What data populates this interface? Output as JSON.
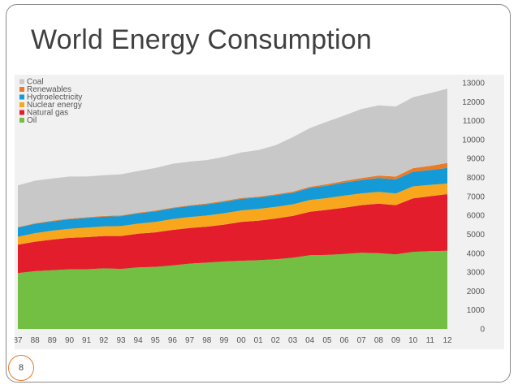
{
  "slide": {
    "title": "World Energy Consumption",
    "page_number": "8"
  },
  "colors": {
    "Coal": "#c8c8c8",
    "Renewables": "#ec7a25",
    "Hydroelectricity": "#139ad7",
    "Nuclear energy": "#f8a71c",
    "Natural gas": "#e41d2c",
    "Oil": "#72bf44"
  },
  "chart_data": {
    "type": "area",
    "stacked": true,
    "title": "World Energy Consumption",
    "xlabel": "",
    "ylabel": "",
    "x": [
      "87",
      "88",
      "89",
      "90",
      "91",
      "92",
      "93",
      "94",
      "95",
      "96",
      "97",
      "98",
      "99",
      "00",
      "01",
      "02",
      "03",
      "04",
      "05",
      "06",
      "07",
      "08",
      "09",
      "10",
      "11",
      "12"
    ],
    "ylim": [
      0,
      13000
    ],
    "yticks": [
      0,
      1000,
      2000,
      3000,
      4000,
      5000,
      6000,
      7000,
      8000,
      9000,
      10000,
      11000,
      12000,
      13000
    ],
    "y_axis_side": "right",
    "legend_position": "top-left",
    "legend_order": [
      "Coal",
      "Renewables",
      "Hydroelectricity",
      "Nuclear energy",
      "Natural gas",
      "Oil"
    ],
    "series": [
      {
        "name": "Oil",
        "values": [
          2950,
          3050,
          3100,
          3150,
          3150,
          3200,
          3170,
          3250,
          3280,
          3350,
          3450,
          3500,
          3560,
          3600,
          3630,
          3680,
          3760,
          3890,
          3910,
          3960,
          4020,
          4000,
          3940,
          4070,
          4110,
          4130
        ]
      },
      {
        "name": "Natural gas",
        "values": [
          1500,
          1560,
          1620,
          1660,
          1700,
          1710,
          1740,
          1780,
          1820,
          1880,
          1880,
          1900,
          1950,
          2050,
          2090,
          2150,
          2210,
          2300,
          2380,
          2440,
          2520,
          2620,
          2600,
          2830,
          2900,
          2990
        ]
      },
      {
        "name": "Nuclear energy",
        "values": [
          420,
          450,
          470,
          480,
          500,
          510,
          520,
          530,
          550,
          570,
          580,
          590,
          600,
          610,
          620,
          620,
          610,
          620,
          620,
          640,
          620,
          620,
          610,
          630,
          600,
          560
        ]
      },
      {
        "name": "Hydroelectricity",
        "values": [
          480,
          490,
          490,
          500,
          510,
          510,
          530,
          540,
          560,
          570,
          580,
          590,
          600,
          610,
          600,
          610,
          610,
          640,
          660,
          690,
          700,
          730,
          750,
          770,
          780,
          830
        ]
      },
      {
        "name": "Renewables",
        "values": [
          30,
          30,
          40,
          40,
          40,
          40,
          40,
          40,
          40,
          40,
          40,
          50,
          50,
          50,
          50,
          50,
          60,
          60,
          80,
          90,
          110,
          130,
          150,
          190,
          220,
          250
        ]
      },
      {
        "name": "Coal",
        "values": [
          2200,
          2250,
          2230,
          2220,
          2150,
          2150,
          2170,
          2200,
          2250,
          2310,
          2310,
          2290,
          2330,
          2400,
          2460,
          2590,
          2880,
          3100,
          3300,
          3450,
          3650,
          3710,
          3700,
          3750,
          3850,
          3930
        ]
      }
    ]
  }
}
